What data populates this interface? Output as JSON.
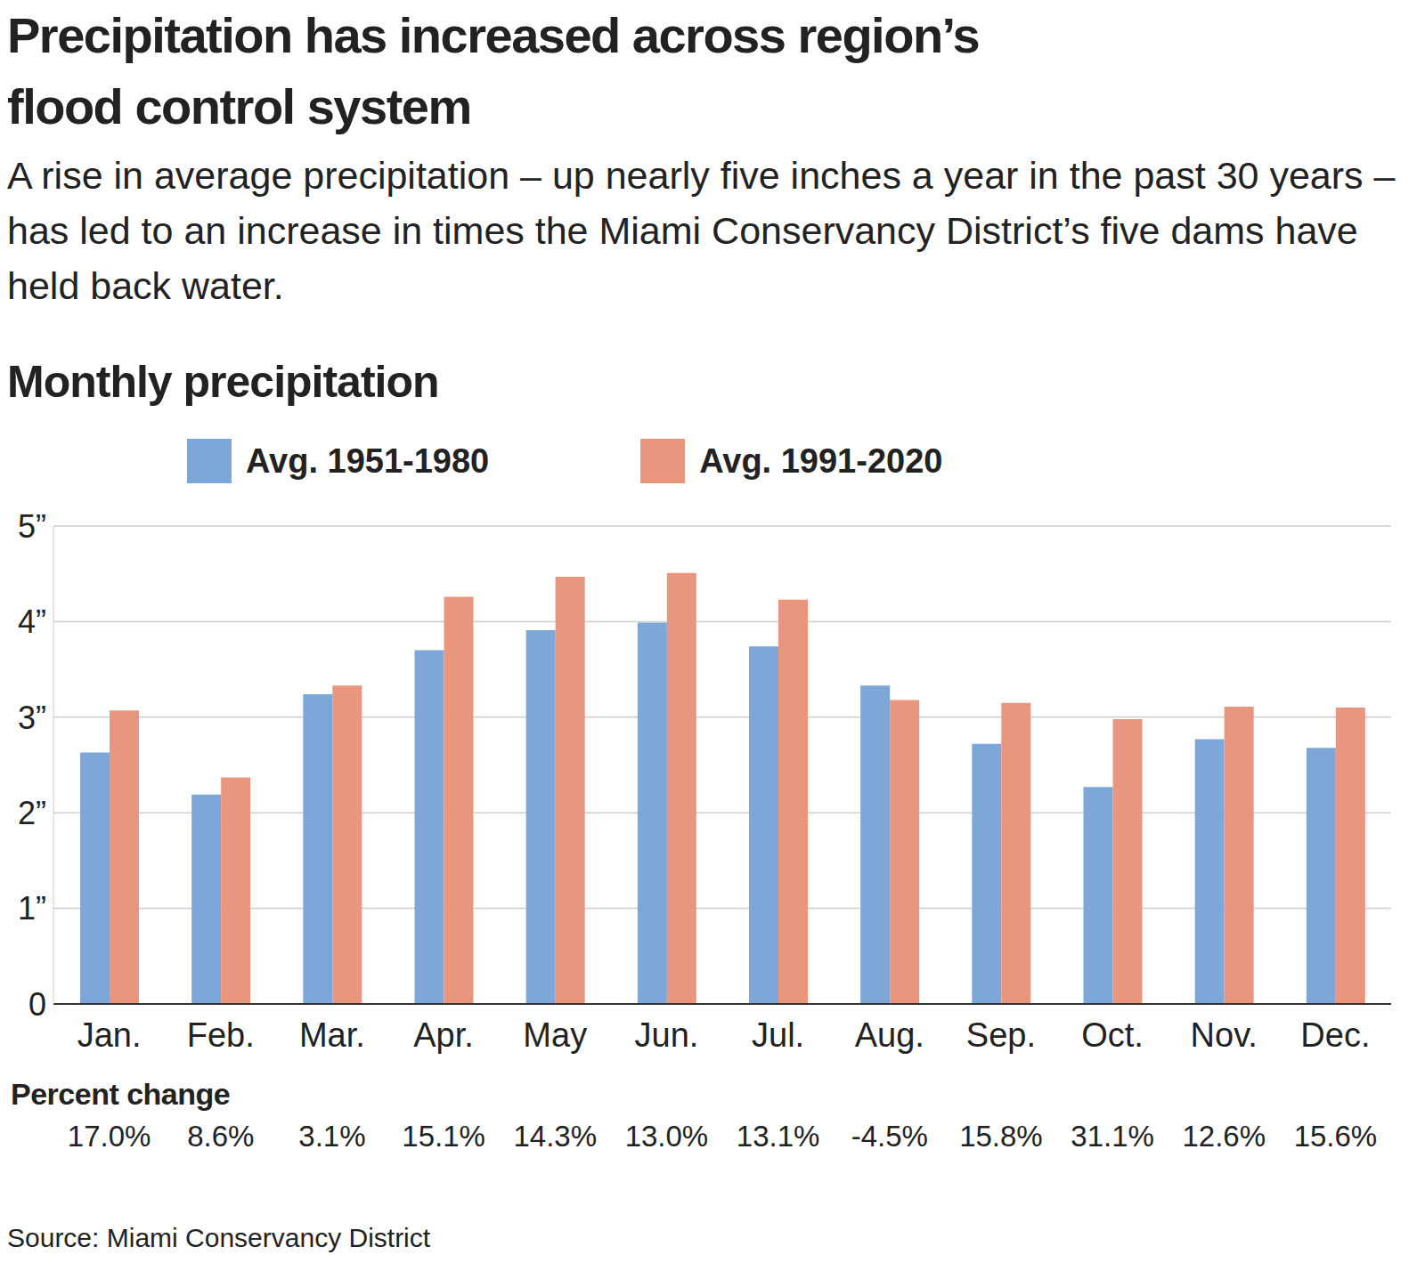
{
  "chart_data": {
    "type": "bar",
    "title": "Precipitation has increased across region’s flood control system",
    "subtitle": "A rise in average precipitation – up nearly five inches a year in the past 30 years – has led to an increase in times the Miami Conservancy District’s five dams have held back water.",
    "chart_title": "Monthly precipitation",
    "categories": [
      "Jan.",
      "Feb.",
      "Mar.",
      "Apr.",
      "May",
      "Jun.",
      "Jul.",
      "Aug.",
      "Sep.",
      "Oct.",
      "Nov.",
      "Dec."
    ],
    "series": [
      {
        "name": "Avg. 1951-1980",
        "color": "#7da7d9",
        "values": [
          2.63,
          2.19,
          3.24,
          3.7,
          3.91,
          3.99,
          3.74,
          3.33,
          2.72,
          2.27,
          2.77,
          2.68
        ]
      },
      {
        "name": "Avg. 1991-2020",
        "color": "#e8977e",
        "values": [
          3.07,
          2.37,
          3.33,
          4.26,
          4.47,
          4.51,
          4.23,
          3.18,
          3.15,
          2.98,
          3.11,
          3.1
        ]
      }
    ],
    "ylim": [
      0,
      5
    ],
    "yticks": [
      0,
      {
        "value": 1,
        "label": "1”"
      },
      {
        "value": 2,
        "label": "2”"
      },
      {
        "value": 3,
        "label": "3”"
      },
      {
        "value": 4,
        "label": "4”"
      },
      {
        "value": 5,
        "label": "5”"
      }
    ],
    "grid": true,
    "legend": "top",
    "percent_change": {
      "label": "Percent change",
      "values": [
        "17.0%",
        "8.6%",
        "3.1%",
        "15.1%",
        "14.3%",
        "13.0%",
        "13.1%",
        "-4.5%",
        "15.8%",
        "31.1%",
        "12.6%",
        "15.6%"
      ]
    },
    "source": "Source: Miami Conservancy District"
  }
}
